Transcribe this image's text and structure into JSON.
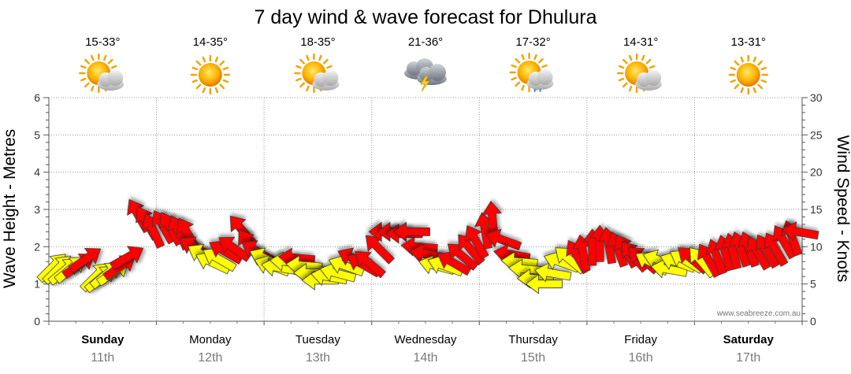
{
  "title": "7 day wind & wave forecast for Dhulura",
  "watermark": "www.seabreeze.com.au",
  "colors": {
    "light_wind": "#ffff00",
    "strong_wind": "#ff0000",
    "outline": "#333333",
    "grid": "#999999"
  },
  "days": [
    {
      "name": "Sunday",
      "date": "11th",
      "temp": "15-33°",
      "icon": "partly-cloudy-icon",
      "bold": true
    },
    {
      "name": "Monday",
      "date": "12th",
      "temp": "14-35°",
      "icon": "sunny-icon",
      "bold": false
    },
    {
      "name": "Tuesday",
      "date": "13th",
      "temp": "18-35°",
      "icon": "partly-cloudy-icon",
      "bold": false
    },
    {
      "name": "Wednesday",
      "date": "14th",
      "temp": "21-36°",
      "icon": "storm-icon",
      "bold": false
    },
    {
      "name": "Thursday",
      "date": "15th",
      "temp": "17-32°",
      "icon": "shower-icon",
      "bold": false
    },
    {
      "name": "Friday",
      "date": "16th",
      "temp": "14-31°",
      "icon": "partly-cloudy-icon",
      "bold": false
    },
    {
      "name": "Saturday",
      "date": "17th",
      "temp": "13-31°",
      "icon": "sunny-icon",
      "bold": true
    }
  ],
  "chart_data": {
    "type": "line",
    "title": "7 day wind & wave forecast for Dhulura",
    "ylabel": "Wave Height - Metres",
    "y2label": "Wind Speed - Knots",
    "ylim": [
      0,
      6
    ],
    "y2lim": [
      0,
      30
    ],
    "yticks": [
      0,
      1,
      2,
      3,
      4,
      5,
      6
    ],
    "y2ticks": [
      0,
      5,
      10,
      15,
      20,
      25,
      30
    ],
    "grid": true,
    "x_unit": "days since start of Sunday",
    "series": [
      {
        "name": "Wind",
        "x": [
          0.05,
          0.1,
          0.16,
          0.22,
          0.3,
          0.36,
          0.45,
          0.5,
          0.55,
          0.62,
          0.68,
          0.75,
          0.82,
          0.9,
          0.96,
          1.05,
          1.12,
          1.2,
          1.28,
          1.35,
          1.42,
          1.5,
          1.56,
          1.62,
          1.7,
          1.78,
          1.85,
          1.92,
          2.0,
          2.05,
          2.12,
          2.2,
          2.28,
          2.35,
          2.42,
          2.5,
          2.58,
          2.66,
          2.74,
          2.82,
          2.9,
          2.96,
          3.05,
          3.12,
          3.2,
          3.28,
          3.35,
          3.42,
          3.5,
          3.58,
          3.66,
          3.74,
          3.82,
          3.9,
          3.96,
          4.05,
          4.12,
          4.2,
          4.28,
          4.35,
          4.42,
          4.5,
          4.58,
          4.66,
          4.74,
          4.82,
          4.9,
          4.96,
          5.05,
          5.12,
          5.2,
          5.28,
          5.35,
          5.42,
          5.5,
          5.58,
          5.66,
          5.74,
          5.82,
          5.9,
          5.96,
          6.05,
          6.12,
          6.2,
          6.28,
          6.35,
          6.42,
          6.5,
          6.58,
          6.66,
          6.74,
          6.82,
          6.9,
          6.96
        ],
        "wave_m": [
          1.5,
          1.45,
          1.4,
          1.45,
          1.55,
          1.7,
          1.25,
          1.2,
          1.3,
          1.35,
          1.5,
          1.75,
          2.9,
          2.7,
          2.5,
          2.6,
          2.55,
          2.45,
          2.4,
          2.0,
          1.8,
          1.6,
          1.7,
          1.9,
          2.0,
          2.5,
          2.1,
          1.9,
          1.7,
          1.5,
          1.45,
          1.6,
          1.7,
          1.5,
          1.3,
          1.1,
          1.2,
          1.3,
          1.5,
          1.7,
          1.55,
          1.6,
          2.0,
          2.4,
          2.4,
          2.35,
          2.4,
          2.0,
          1.8,
          1.5,
          1.5,
          1.6,
          1.8,
          2.0,
          2.2,
          2.5,
          2.8,
          2.2,
          1.8,
          1.6,
          1.4,
          1.15,
          1.0,
          1.3,
          1.6,
          1.7,
          1.8,
          1.9,
          2.05,
          2.15,
          2.1,
          2.0,
          1.95,
          1.8,
          1.7,
          1.6,
          1.65,
          1.4,
          1.6,
          1.65,
          1.7,
          1.65,
          1.7,
          1.8,
          1.9,
          1.95,
          2.0,
          2.0,
          1.9,
          1.95,
          2.0,
          2.2,
          2.3,
          2.4
        ],
        "knots": [
          9,
          10,
          9,
          10,
          12,
          13,
          10,
          9,
          10,
          11,
          12,
          14,
          18,
          17,
          16,
          17,
          16,
          15,
          14,
          12,
          11,
          10,
          11,
          12,
          13,
          16,
          13,
          12,
          11,
          10,
          10,
          11,
          12,
          11,
          10,
          9,
          10,
          10,
          11,
          12,
          12,
          13,
          14,
          15,
          15,
          15,
          16,
          13,
          12,
          11,
          11,
          12,
          13,
          14,
          15,
          17,
          18,
          15,
          12,
          11,
          10,
          9,
          9,
          10,
          11,
          11,
          12,
          13,
          14,
          14,
          14,
          13,
          13,
          12,
          12,
          11,
          11,
          10,
          11,
          11,
          12,
          11,
          12,
          12,
          13,
          13,
          14,
          14,
          13,
          13,
          14,
          15,
          15,
          14
        ],
        "dir_deg": [
          225,
          225,
          230,
          230,
          235,
          235,
          225,
          230,
          230,
          235,
          235,
          240,
          150,
          150,
          155,
          150,
          150,
          155,
          150,
          120,
          120,
          115,
          120,
          120,
          125,
          140,
          145,
          120,
          115,
          110,
          100,
          95,
          95,
          95,
          90,
          90,
          100,
          105,
          110,
          115,
          120,
          130,
          135,
          90,
          90,
          90,
          90,
          95,
          100,
          105,
          110,
          120,
          130,
          140,
          150,
          170,
          175,
          110,
          100,
          95,
          95,
          90,
          90,
          100,
          110,
          130,
          150,
          170,
          180,
          180,
          170,
          160,
          150,
          140,
          130,
          120,
          110,
          100,
          110,
          120,
          130,
          140,
          150,
          160,
          165,
          165,
          160,
          160,
          150,
          150,
          150,
          150,
          160,
          100
        ]
      }
    ]
  }
}
